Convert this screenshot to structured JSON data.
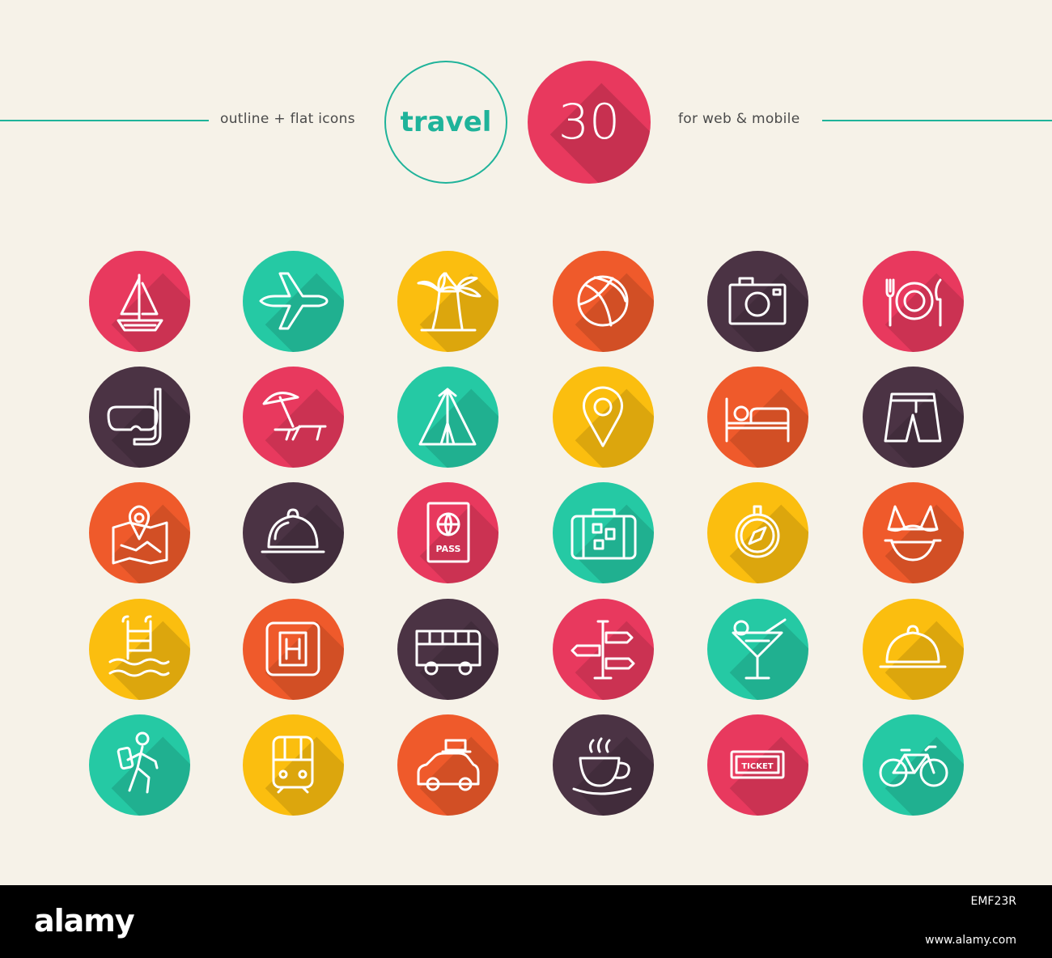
{
  "header": {
    "left_text": "outline + flat icons",
    "title": "travel",
    "count": "30",
    "right_text": "for web & mobile"
  },
  "colors": {
    "teal": "#1fb39a",
    "pink": "#e8395e",
    "mint": "#25c9a4",
    "yellow": "#fbbe0f",
    "orange": "#ef5a2b",
    "plum": "#4b3344",
    "background": "#f6f2e8"
  },
  "icons": [
    {
      "name": "sailboat-icon",
      "color": "pink"
    },
    {
      "name": "airplane-icon",
      "color": "mint"
    },
    {
      "name": "palm-trees-icon",
      "color": "yellow"
    },
    {
      "name": "beach-ball-icon",
      "color": "orange"
    },
    {
      "name": "camera-icon",
      "color": "plum"
    },
    {
      "name": "dining-icon",
      "color": "pink"
    },
    {
      "name": "snorkel-mask-icon",
      "color": "plum"
    },
    {
      "name": "beach-chair-icon",
      "color": "pink"
    },
    {
      "name": "tent-icon",
      "color": "mint"
    },
    {
      "name": "location-pin-icon",
      "color": "yellow"
    },
    {
      "name": "hotel-bed-icon",
      "color": "orange"
    },
    {
      "name": "swim-shorts-icon",
      "color": "plum"
    },
    {
      "name": "map-pin-icon",
      "color": "orange"
    },
    {
      "name": "room-service-bell-icon",
      "color": "plum"
    },
    {
      "name": "passport-icon",
      "color": "pink"
    },
    {
      "name": "suitcase-icon",
      "color": "mint"
    },
    {
      "name": "compass-icon",
      "color": "yellow"
    },
    {
      "name": "bikini-icon",
      "color": "orange"
    },
    {
      "name": "swimming-pool-icon",
      "color": "yellow"
    },
    {
      "name": "hospital-sign-icon",
      "color": "orange"
    },
    {
      "name": "bus-icon",
      "color": "plum"
    },
    {
      "name": "signpost-icon",
      "color": "pink"
    },
    {
      "name": "cocktail-icon",
      "color": "mint"
    },
    {
      "name": "food-cloche-icon",
      "color": "yellow"
    },
    {
      "name": "hiker-icon",
      "color": "mint"
    },
    {
      "name": "train-icon",
      "color": "yellow"
    },
    {
      "name": "car-with-luggage-icon",
      "color": "orange"
    },
    {
      "name": "coffee-cup-icon",
      "color": "plum"
    },
    {
      "name": "ticket-icon",
      "color": "pink"
    },
    {
      "name": "bicycle-icon",
      "color": "mint"
    }
  ],
  "icon_labels": {
    "passport": "PASS",
    "ticket": "TICKET"
  },
  "watermark": "alamy",
  "footer": {
    "logo": "alamy",
    "image_ref": "EMF23R",
    "url": "www.alamy.com"
  }
}
